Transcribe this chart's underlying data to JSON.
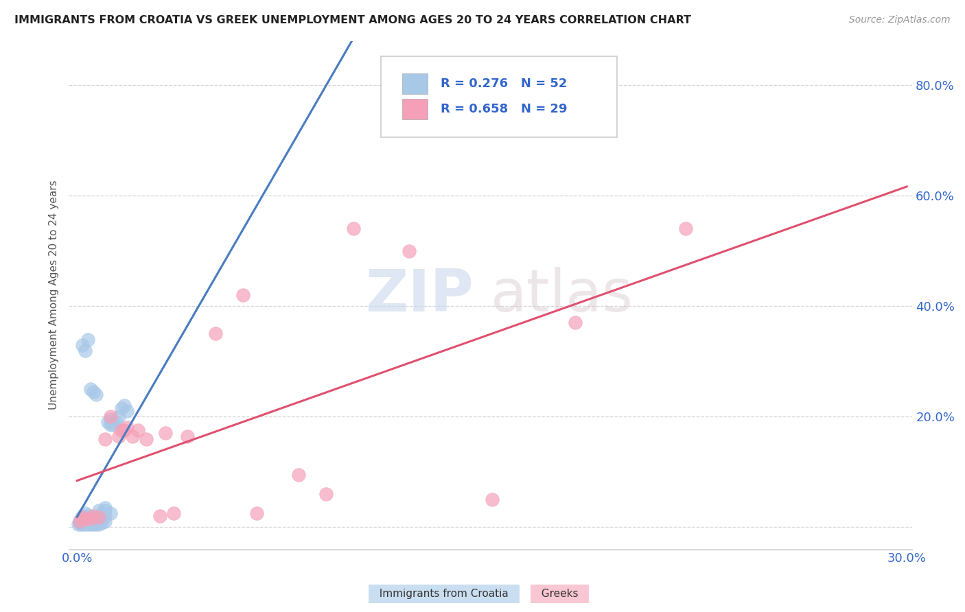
{
  "title": "IMMIGRANTS FROM CROATIA VS GREEK UNEMPLOYMENT AMONG AGES 20 TO 24 YEARS CORRELATION CHART",
  "source": "Source: ZipAtlas.com",
  "ylabel": "Unemployment Among Ages 20 to 24 years",
  "xlabel_croatia": "Immigrants from Croatia",
  "xlabel_greeks": "Greeks",
  "xlim": [
    -0.003,
    0.302
  ],
  "ylim": [
    -0.04,
    0.88
  ],
  "yticks": [
    0.0,
    0.2,
    0.4,
    0.6,
    0.8
  ],
  "ytick_labels": [
    "",
    "20.0%",
    "40.0%",
    "60.0%",
    "80.0%"
  ],
  "xtick_left": 0.0,
  "xtick_right": 0.3,
  "xtick_left_label": "0.0%",
  "xtick_right_label": "30.0%",
  "R_croatia": 0.276,
  "N_croatia": 52,
  "R_greeks": 0.658,
  "N_greeks": 29,
  "color_croatia": "#a8c8e8",
  "color_greeks": "#f5a0b8",
  "line_color_croatia_solid": "#4a7cc0",
  "line_color_croatia_dashed": "#90b8d8",
  "line_color_greeks": "#e05070",
  "watermark_zip": "ZIP",
  "watermark_atlas": "atlas",
  "background_color": "#ffffff",
  "legend_color": "#3366cc",
  "grid_color": "#cccccc",
  "croatia_x": [
    0.0005,
    0.001,
    0.001,
    0.0015,
    0.002,
    0.002,
    0.002,
    0.002,
    0.003,
    0.003,
    0.003,
    0.003,
    0.003,
    0.004,
    0.004,
    0.004,
    0.004,
    0.005,
    0.005,
    0.005,
    0.005,
    0.006,
    0.006,
    0.006,
    0.007,
    0.007,
    0.008,
    0.008,
    0.009,
    0.009,
    0.01,
    0.01,
    0.01,
    0.011,
    0.012,
    0.012,
    0.013,
    0.014,
    0.015,
    0.016,
    0.017,
    0.018,
    0.002,
    0.003,
    0.004,
    0.005,
    0.006,
    0.007,
    0.008,
    0.009,
    0.01,
    0.012
  ],
  "croatia_y": [
    0.005,
    0.008,
    0.012,
    0.006,
    0.005,
    0.01,
    0.015,
    0.02,
    0.005,
    0.008,
    0.012,
    0.018,
    0.025,
    0.006,
    0.01,
    0.015,
    0.022,
    0.005,
    0.008,
    0.012,
    0.018,
    0.006,
    0.01,
    0.015,
    0.005,
    0.012,
    0.006,
    0.015,
    0.008,
    0.02,
    0.01,
    0.02,
    0.03,
    0.19,
    0.185,
    0.195,
    0.185,
    0.19,
    0.2,
    0.215,
    0.22,
    0.21,
    0.33,
    0.32,
    0.34,
    0.25,
    0.245,
    0.24,
    0.03,
    0.025,
    0.035,
    0.025
  ],
  "greeks_x": [
    0.001,
    0.002,
    0.003,
    0.005,
    0.006,
    0.008,
    0.01,
    0.012,
    0.015,
    0.016,
    0.017,
    0.018,
    0.02,
    0.022,
    0.025,
    0.03,
    0.032,
    0.035,
    0.04,
    0.05,
    0.06,
    0.065,
    0.08,
    0.09,
    0.1,
    0.12,
    0.15,
    0.18,
    0.22
  ],
  "greeks_y": [
    0.01,
    0.018,
    0.015,
    0.015,
    0.02,
    0.018,
    0.16,
    0.2,
    0.165,
    0.175,
    0.175,
    0.18,
    0.165,
    0.175,
    0.16,
    0.02,
    0.17,
    0.025,
    0.165,
    0.35,
    0.42,
    0.025,
    0.095,
    0.06,
    0.54,
    0.5,
    0.05,
    0.37,
    0.54
  ]
}
